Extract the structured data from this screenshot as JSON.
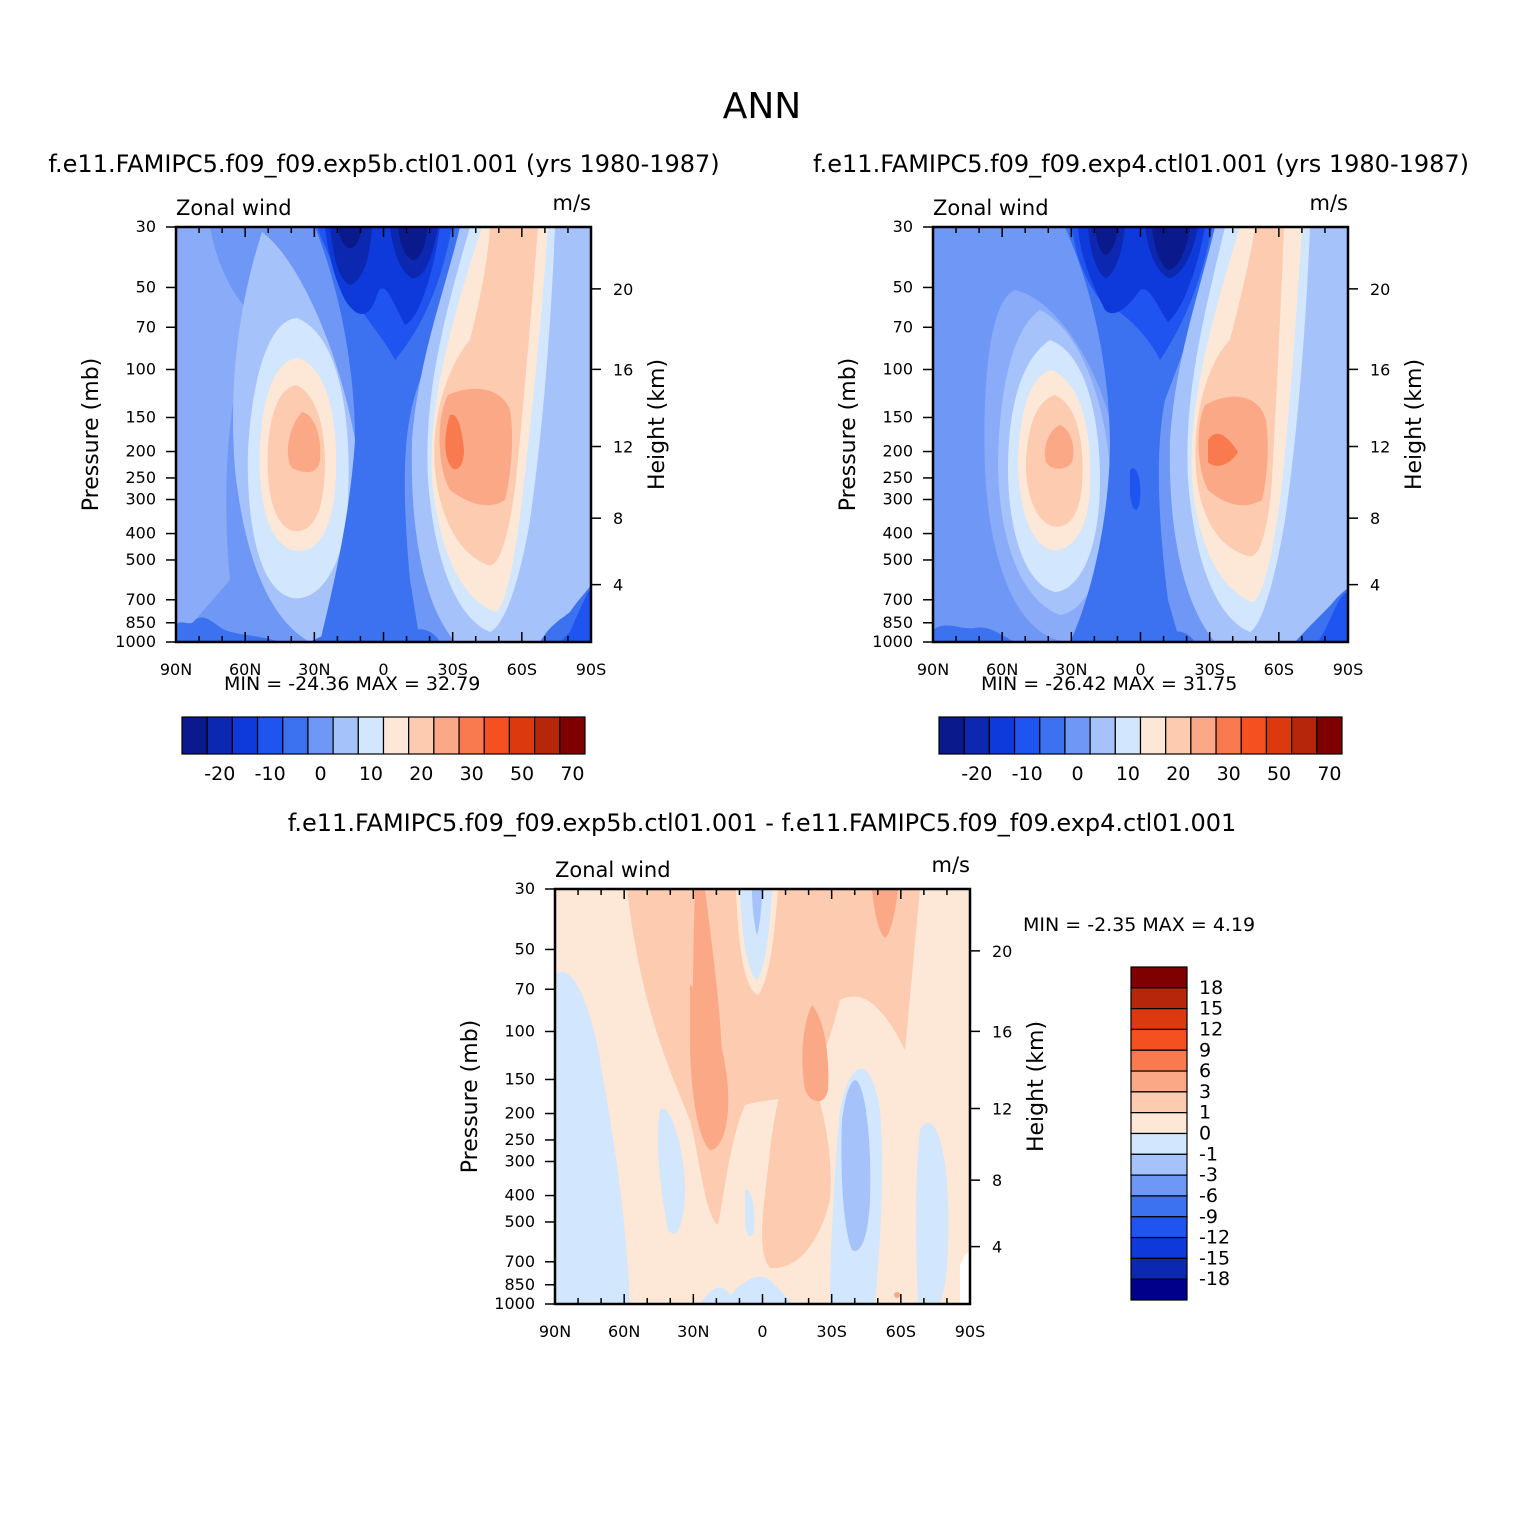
{
  "page_title": "ANN",
  "colors": {
    "neg": [
      "#0a1a8c",
      "#0c28b0",
      "#0e3adc",
      "#1f54f0",
      "#3c72f0",
      "#6f97f5",
      "#a6c2fb",
      "#d2e6fd"
    ],
    "pos": [
      "#fde8d7",
      "#fccbb0",
      "#fba887",
      "#f97a4e",
      "#f5501f",
      "#dc3a0e",
      "#b5260a",
      "#7e0000"
    ],
    "diff": [
      "#00008b",
      "#0c28b0",
      "#0e3adc",
      "#1f54f0",
      "#3c72f0",
      "#6f97f5",
      "#a6c2fb",
      "#d2e6fd",
      "#fde8d7",
      "#fccbb0",
      "#fba887",
      "#f97a4e",
      "#f5501f",
      "#dc3a0e",
      "#b5260a",
      "#7e0000"
    ]
  },
  "panels": [
    {
      "title": "f.e11.FAMIPC5.f09_f09.exp5b.ctl01.001 (yrs 1980-1987)",
      "variable": "Zonal wind",
      "units": "m/s",
      "min_max": "MIN =  -24.36   MAX =   32.79",
      "colorbar_labels": [
        "-20",
        "-10",
        "0",
        "10",
        "20",
        "30",
        "50",
        "70"
      ]
    },
    {
      "title": "f.e11.FAMIPC5.f09_f09.exp4.ctl01.001 (yrs 1980-1987)",
      "variable": "Zonal wind",
      "units": "m/s",
      "min_max": "MIN =  -26.42   MAX =   31.75",
      "colorbar_labels": [
        "-20",
        "-10",
        "0",
        "10",
        "20",
        "30",
        "50",
        "70"
      ]
    },
    {
      "title": "f.e11.FAMIPC5.f09_f09.exp5b.ctl01.001 - f.e11.FAMIPC5.f09_f09.exp4.ctl01.001",
      "variable": "Zonal wind",
      "units": "m/s",
      "min_max": "MIN =    -2.35   MAX =     4.19",
      "colorbar_labels": [
        "18",
        "15",
        "12",
        "9",
        "6",
        "3",
        "1",
        "0",
        "-1",
        "-3",
        "-6",
        "-9",
        "-12",
        "-15",
        "-18"
      ]
    }
  ],
  "axes": {
    "x_ticks": [
      "90N",
      "60N",
      "30N",
      "0",
      "30S",
      "60S",
      "90S"
    ],
    "y_label": "Pressure (mb)",
    "y_ticks": [
      "30",
      "50",
      "70",
      "100",
      "150",
      "200",
      "250",
      "300",
      "400",
      "500",
      "700",
      "850",
      "1000"
    ],
    "y2_label": "Height (km)",
    "y2_ticks": [
      "20",
      "16",
      "12",
      "8",
      "4"
    ]
  },
  "chart_data": [
    {
      "type": "heatmap",
      "title": "f.e11.FAMIPC5.f09_f09.exp5b.ctl01.001 (yrs 1980-1987)",
      "variable": "Zonal wind",
      "units": "m/s",
      "x": [
        "90N",
        "60N",
        "30N",
        "0",
        "30S",
        "60S",
        "90S"
      ],
      "y_pressure_mb": [
        30,
        50,
        70,
        100,
        150,
        200,
        250,
        300,
        400,
        500,
        700,
        850,
        1000
      ],
      "min": -24.36,
      "max": 32.79,
      "contour_levels": [
        -25,
        -20,
        -15,
        -10,
        -5,
        0,
        5,
        10,
        15,
        20,
        25,
        30,
        40,
        50,
        60,
        70,
        80
      ]
    },
    {
      "type": "heatmap",
      "title": "f.e11.FAMIPC5.f09_f09.exp4.ctl01.001 (yrs 1980-1987)",
      "variable": "Zonal wind",
      "units": "m/s",
      "x": [
        "90N",
        "60N",
        "30N",
        "0",
        "30S",
        "60S",
        "90S"
      ],
      "y_pressure_mb": [
        30,
        50,
        70,
        100,
        150,
        200,
        250,
        300,
        400,
        500,
        700,
        850,
        1000
      ],
      "min": -26.42,
      "max": 31.75,
      "contour_levels": [
        -25,
        -20,
        -15,
        -10,
        -5,
        0,
        5,
        10,
        15,
        20,
        25,
        30,
        40,
        50,
        60,
        70,
        80
      ]
    },
    {
      "type": "heatmap",
      "title": "f.e11.FAMIPC5.f09_f09.exp5b.ctl01.001 - f.e11.FAMIPC5.f09_f09.exp4.ctl01.001",
      "variable": "Zonal wind",
      "units": "m/s",
      "x": [
        "90N",
        "60N",
        "30N",
        "0",
        "30S",
        "60S",
        "90S"
      ],
      "y_pressure_mb": [
        30,
        50,
        70,
        100,
        150,
        200,
        250,
        300,
        400,
        500,
        700,
        850,
        1000
      ],
      "min": -2.35,
      "max": 4.19,
      "contour_levels": [
        -18,
        -15,
        -12,
        -9,
        -6,
        -3,
        -1,
        0,
        1,
        3,
        6,
        9,
        12,
        15,
        18
      ]
    }
  ]
}
